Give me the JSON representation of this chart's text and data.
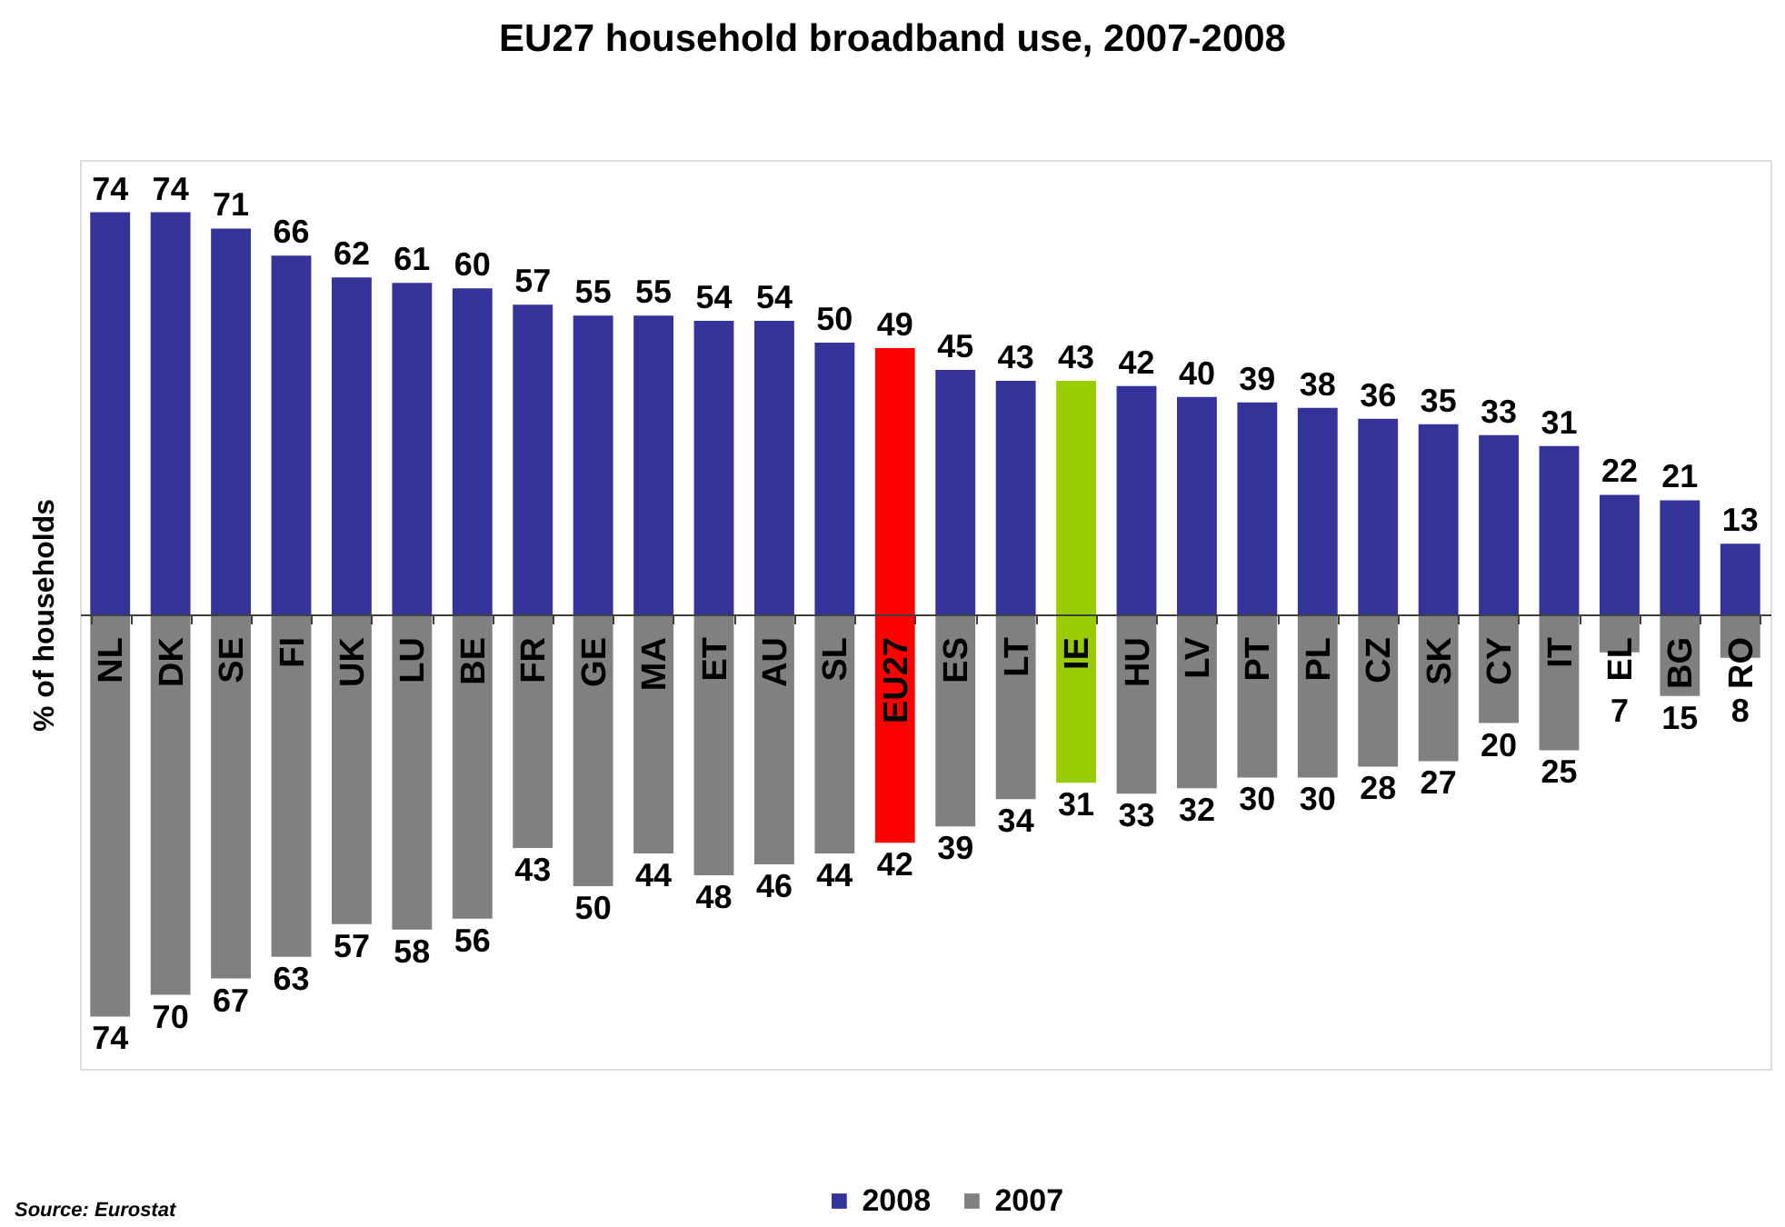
{
  "chart_data": {
    "type": "bar",
    "title": "EU27 household broadband use, 2007-2008",
    "ylabel": "% of households",
    "categories": [
      "NL",
      "DK",
      "SE",
      "FI",
      "UK",
      "LU",
      "BE",
      "FR",
      "GE",
      "MA",
      "ET",
      "AU",
      "SL",
      "EU27",
      "ES",
      "LT",
      "IE",
      "HU",
      "LV",
      "PT",
      "PL",
      "CZ",
      "SK",
      "CY",
      "IT",
      "EL",
      "BG",
      "RO"
    ],
    "stacked": true,
    "series": [
      {
        "name": "2008",
        "color": "#333399",
        "colors": [
          "#333399",
          "#333399",
          "#333399",
          "#333399",
          "#333399",
          "#333399",
          "#333399",
          "#333399",
          "#333399",
          "#333399",
          "#333399",
          "#333399",
          "#333399",
          "#ff0000",
          "#333399",
          "#333399",
          "#99cc00",
          "#333399",
          "#333399",
          "#333399",
          "#333399",
          "#333399",
          "#333399",
          "#333399",
          "#333399",
          "#333399",
          "#333399",
          "#333399"
        ],
        "values": [
          74,
          74,
          71,
          66,
          62,
          61,
          60,
          57,
          55,
          55,
          54,
          54,
          50,
          49,
          45,
          43,
          43,
          42,
          40,
          39,
          38,
          36,
          35,
          33,
          31,
          22,
          21,
          13
        ],
        "value_labels": [
          "74",
          "74",
          "71",
          "66",
          "62",
          "61",
          "60",
          "57",
          "55",
          "55",
          "54",
          "54",
          "50",
          "49",
          "45",
          "43",
          "43",
          "42",
          "40",
          "39",
          "38",
          "36",
          "35",
          "33",
          "31",
          "22",
          "21",
          "13"
        ]
      },
      {
        "name": "2007",
        "color": "#808080",
        "colors": [
          "#808080",
          "#808080",
          "#808080",
          "#808080",
          "#808080",
          "#808080",
          "#808080",
          "#808080",
          "#808080",
          "#808080",
          "#808080",
          "#808080",
          "#808080",
          "#ff0000",
          "#808080",
          "#808080",
          "#99cc00",
          "#808080",
          "#808080",
          "#808080",
          "#808080",
          "#808080",
          "#808080",
          "#808080",
          "#808080",
          "#808080",
          "#808080",
          "#808080"
        ],
        "values": [
          -74,
          -70,
          -67,
          -63,
          -57,
          -58,
          -56,
          -43,
          -50,
          -44,
          -48,
          -46,
          -44,
          -42,
          -39,
          -34,
          -31,
          -33,
          -32,
          -30,
          -30,
          -28,
          -27,
          -20,
          -25,
          -7,
          -15,
          -8
        ]
      }
    ],
    "legend": "bottom",
    "tick_labels": "x",
    "annotations": [
      {
        "text": "74",
        "x": "NL",
        "y": -74
      },
      {
        "text": "70",
        "x": "DK",
        "y": -70
      },
      {
        "text": "67",
        "x": "SE",
        "y": -67
      },
      {
        "text": "63",
        "x": "FI",
        "y": -63
      },
      {
        "text": "57",
        "x": "UK",
        "y": -57
      },
      {
        "text": "58",
        "x": "LU",
        "y": -58
      },
      {
        "text": "56",
        "x": "BE",
        "y": -56
      },
      {
        "text": "43",
        "x": "FR",
        "y": -43
      },
      {
        "text": "50",
        "x": "GE",
        "y": -50
      },
      {
        "text": "44",
        "x": "MA",
        "y": -44
      },
      {
        "text": "48",
        "x": "ET",
        "y": -48
      },
      {
        "text": "46",
        "x": "AU",
        "y": -46
      },
      {
        "text": "44",
        "x": "SL",
        "y": -44
      },
      {
        "text": "42",
        "x": "EU27",
        "y": -42
      },
      {
        "text": "39",
        "x": "ES",
        "y": -39
      },
      {
        "text": "34",
        "x": "LT",
        "y": -34
      },
      {
        "text": "31",
        "x": "IE",
        "y": -31
      },
      {
        "text": "33",
        "x": "HU",
        "y": -33
      },
      {
        "text": "32",
        "x": "LV",
        "y": -32
      },
      {
        "text": "30",
        "x": "PT",
        "y": -30
      },
      {
        "text": "30",
        "x": "PL",
        "y": -30
      },
      {
        "text": "28",
        "x": "CZ",
        "y": -28
      },
      {
        "text": "27",
        "x": "SK",
        "y": -27
      },
      {
        "text": "20",
        "x": "CY",
        "y": -20
      },
      {
        "text": "25",
        "x": "IT",
        "y": -25
      },
      {
        "text": "7",
        "x": "EL",
        "y": -7
      },
      {
        "text": "15",
        "x": "BG",
        "y": -15
      },
      {
        "text": "8",
        "x": "RO",
        "y": -8
      },
      "Source: Eurostat"
    ]
  }
}
